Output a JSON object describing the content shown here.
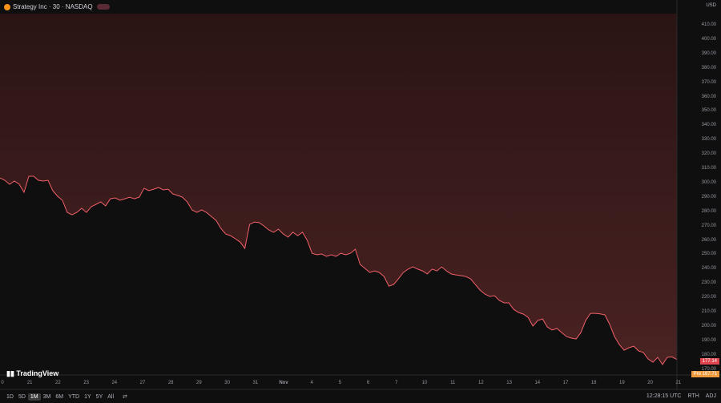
{
  "header": {
    "title": "Strategy Inc · 30 · NASDAQ",
    "currency": "USD"
  },
  "colors": {
    "line": "#f0606a",
    "fill_top": "#2a1414",
    "fill_bottom": "#4a2222",
    "last_price_bg": "#e0454f",
    "premarket_bg": "#f09a3e"
  },
  "price_axis": {
    "ticks": [
      "410.00",
      "400.00",
      "390.00",
      "380.00",
      "370.00",
      "360.00",
      "350.00",
      "340.00",
      "330.00",
      "320.00",
      "310.00",
      "300.00",
      "290.00",
      "280.00",
      "270.00",
      "260.00",
      "250.00",
      "240.00",
      "230.00",
      "220.00",
      "210.00",
      "200.00",
      "190.00",
      "180.00",
      "170.00"
    ],
    "last_price": "177.14",
    "premarket_label": "Pre",
    "premarket_price": "167.71"
  },
  "time_axis": {
    "ticks": [
      "0",
      "21",
      "22",
      "23",
      "24",
      "27",
      "28",
      "29",
      "30",
      "31",
      "Nov",
      "4",
      "5",
      "6",
      "7",
      "10",
      "11",
      "12",
      "13",
      "14",
      "17",
      "18",
      "19",
      "20",
      "21"
    ]
  },
  "chart_data": {
    "type": "area",
    "ylim": [
      165,
      415
    ],
    "grid": false,
    "prices": [
      303.8,
      302.2,
      299.4,
      301.6,
      299.4,
      293.8,
      305.0,
      305.0,
      302.2,
      301.6,
      302.2,
      294.9,
      291.0,
      288.2,
      279.8,
      278.1,
      279.8,
      282.6,
      279.8,
      283.7,
      285.4,
      287.1,
      284.3,
      289.3,
      289.9,
      288.2,
      289.3,
      290.4,
      289.3,
      290.4,
      296.6,
      294.9,
      296.0,
      297.1,
      295.5,
      296.0,
      292.7,
      291.6,
      290.4,
      287.1,
      281.5,
      279.8,
      281.5,
      279.8,
      277.0,
      274.2,
      268.6,
      264.7,
      263.6,
      261.4,
      259.2,
      254.7,
      271.4,
      273.1,
      272.6,
      270.3,
      267.5,
      265.9,
      268.1,
      264.7,
      262.5,
      265.9,
      263.6,
      265.9,
      260.3,
      251.3,
      250.2,
      250.8,
      249.1,
      250.2,
      249.1,
      251.3,
      250.2,
      251.3,
      254.1,
      243.5,
      240.7,
      237.9,
      239.0,
      237.9,
      235.1,
      228.4,
      229.5,
      233.5,
      237.9,
      240.2,
      241.8,
      240.2,
      239.0,
      236.8,
      240.2,
      239.0,
      241.8,
      239.0,
      236.8,
      236.2,
      235.7,
      235.1,
      233.5,
      229.5,
      225.6,
      222.8,
      221.2,
      221.7,
      218.4,
      216.7,
      216.7,
      212.2,
      210.0,
      208.9,
      206.6,
      200.5,
      204.4,
      205.5,
      199.9,
      197.7,
      198.8,
      196.0,
      193.2,
      192.1,
      191.5,
      196.0,
      204.4,
      209.4,
      209.4,
      209.0,
      208.3,
      201.6,
      193.2,
      187.6,
      183.7,
      185.4,
      186.5,
      183.2,
      182.1,
      177.6,
      175.3,
      178.7,
      173.7,
      178.7,
      179.0,
      177.14
    ]
  },
  "bottom": {
    "ranges": [
      "1D",
      "5D",
      "1M",
      "3M",
      "6M",
      "YTD",
      "1Y",
      "5Y",
      "All"
    ],
    "active": "1M",
    "time": "12:28:15 UTC",
    "session": "RTH",
    "adj": "ADJ"
  },
  "branding": "TradingView"
}
